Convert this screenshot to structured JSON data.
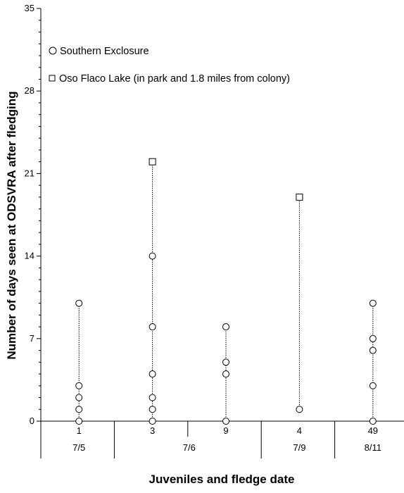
{
  "chart_data": {
    "type": "scatter",
    "title": "",
    "xlabel": "Juveniles and fledge date",
    "ylabel": "Number of days seen at ODSVRA after fledging",
    "ylim": [
      0,
      35
    ],
    "yticks": [
      0,
      7,
      14,
      21,
      28,
      35
    ],
    "grid": false,
    "legend_placement": "top-left",
    "categories": [
      "1",
      "3",
      "9",
      "4",
      "49"
    ],
    "date_groups": [
      {
        "label": "7/5",
        "members": [
          "1"
        ]
      },
      {
        "label": "7/6",
        "members": [
          "3",
          "9"
        ]
      },
      {
        "label": "7/9",
        "members": [
          "4"
        ]
      },
      {
        "label": "8/11",
        "members": [
          "49"
        ]
      }
    ],
    "series": [
      {
        "name": "Southern Exclosure",
        "marker": "circle",
        "points": [
          {
            "x": "1",
            "y": 0
          },
          {
            "x": "1",
            "y": 1
          },
          {
            "x": "1",
            "y": 2
          },
          {
            "x": "1",
            "y": 3
          },
          {
            "x": "1",
            "y": 10
          },
          {
            "x": "3",
            "y": 0
          },
          {
            "x": "3",
            "y": 1
          },
          {
            "x": "3",
            "y": 2
          },
          {
            "x": "3",
            "y": 4
          },
          {
            "x": "3",
            "y": 8
          },
          {
            "x": "3",
            "y": 14
          },
          {
            "x": "9",
            "y": 0
          },
          {
            "x": "9",
            "y": 4
          },
          {
            "x": "9",
            "y": 5
          },
          {
            "x": "9",
            "y": 8
          },
          {
            "x": "4",
            "y": 1
          },
          {
            "x": "49",
            "y": 0
          },
          {
            "x": "49",
            "y": 3
          },
          {
            "x": "49",
            "y": 6
          },
          {
            "x": "49",
            "y": 7
          },
          {
            "x": "49",
            "y": 10
          }
        ]
      },
      {
        "name": "Oso Flaco Lake (in park and 1.8 miles from colony)",
        "marker": "square",
        "points": [
          {
            "x": "3",
            "y": 22
          },
          {
            "x": "4",
            "y": 19
          }
        ]
      }
    ],
    "ranges": [
      {
        "x": "1",
        "min": 0,
        "max": 10
      },
      {
        "x": "3",
        "min": 0,
        "max": 22
      },
      {
        "x": "9",
        "min": 0,
        "max": 8
      },
      {
        "x": "4",
        "min": 1,
        "max": 19
      },
      {
        "x": "49",
        "min": 0,
        "max": 10
      }
    ]
  }
}
